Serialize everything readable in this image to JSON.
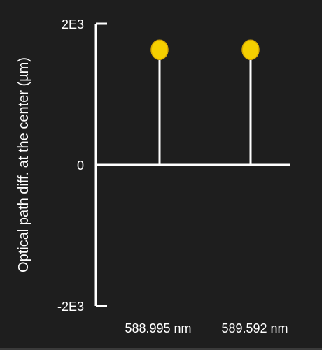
{
  "chart_data": {
    "type": "scatter",
    "style": "stem",
    "title": "",
    "xlabel": "",
    "ylabel": "Optical path diff. at the center (µm)",
    "ylim": [
      -2000,
      2000
    ],
    "ytick_labels": [
      "2E3",
      "0",
      "-2E3"
    ],
    "yticks": [
      2000,
      0,
      -2000
    ],
    "categories": [
      "588.995 nm",
      "589.592 nm"
    ],
    "values": [
      1800,
      1800
    ],
    "marker_color": "#f5cf00",
    "marker_edge_color": "#d8a800",
    "axis_color": "#ffffff",
    "background": "#1e1e1e"
  }
}
